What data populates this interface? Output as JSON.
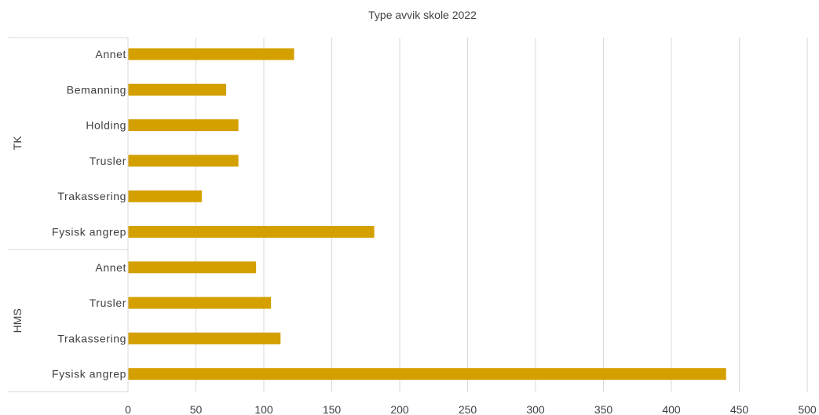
{
  "chart_data": {
    "type": "bar",
    "orientation": "horizontal",
    "title": "Type avvik skole 2022",
    "groups": [
      {
        "name": "TK",
        "categories": [
          "Annet",
          "Bemanning",
          "Holding",
          "Trusler",
          "Trakassering",
          "Fysisk angrep"
        ],
        "values": [
          122,
          72,
          81,
          81,
          54,
          181
        ]
      },
      {
        "name": "HMS",
        "categories": [
          "Annet",
          "Trusler",
          "Trakassering",
          "Fysisk angrep"
        ],
        "values": [
          94,
          105,
          112,
          440
        ]
      }
    ],
    "xlim": [
      0,
      500
    ],
    "xticks": [
      0,
      50,
      100,
      150,
      200,
      250,
      300,
      350,
      400,
      450,
      500
    ],
    "grid": true,
    "legend": "none",
    "colors": {
      "bar": "#D4A000",
      "grid": "#d9d9d9",
      "text": "#404040"
    }
  }
}
